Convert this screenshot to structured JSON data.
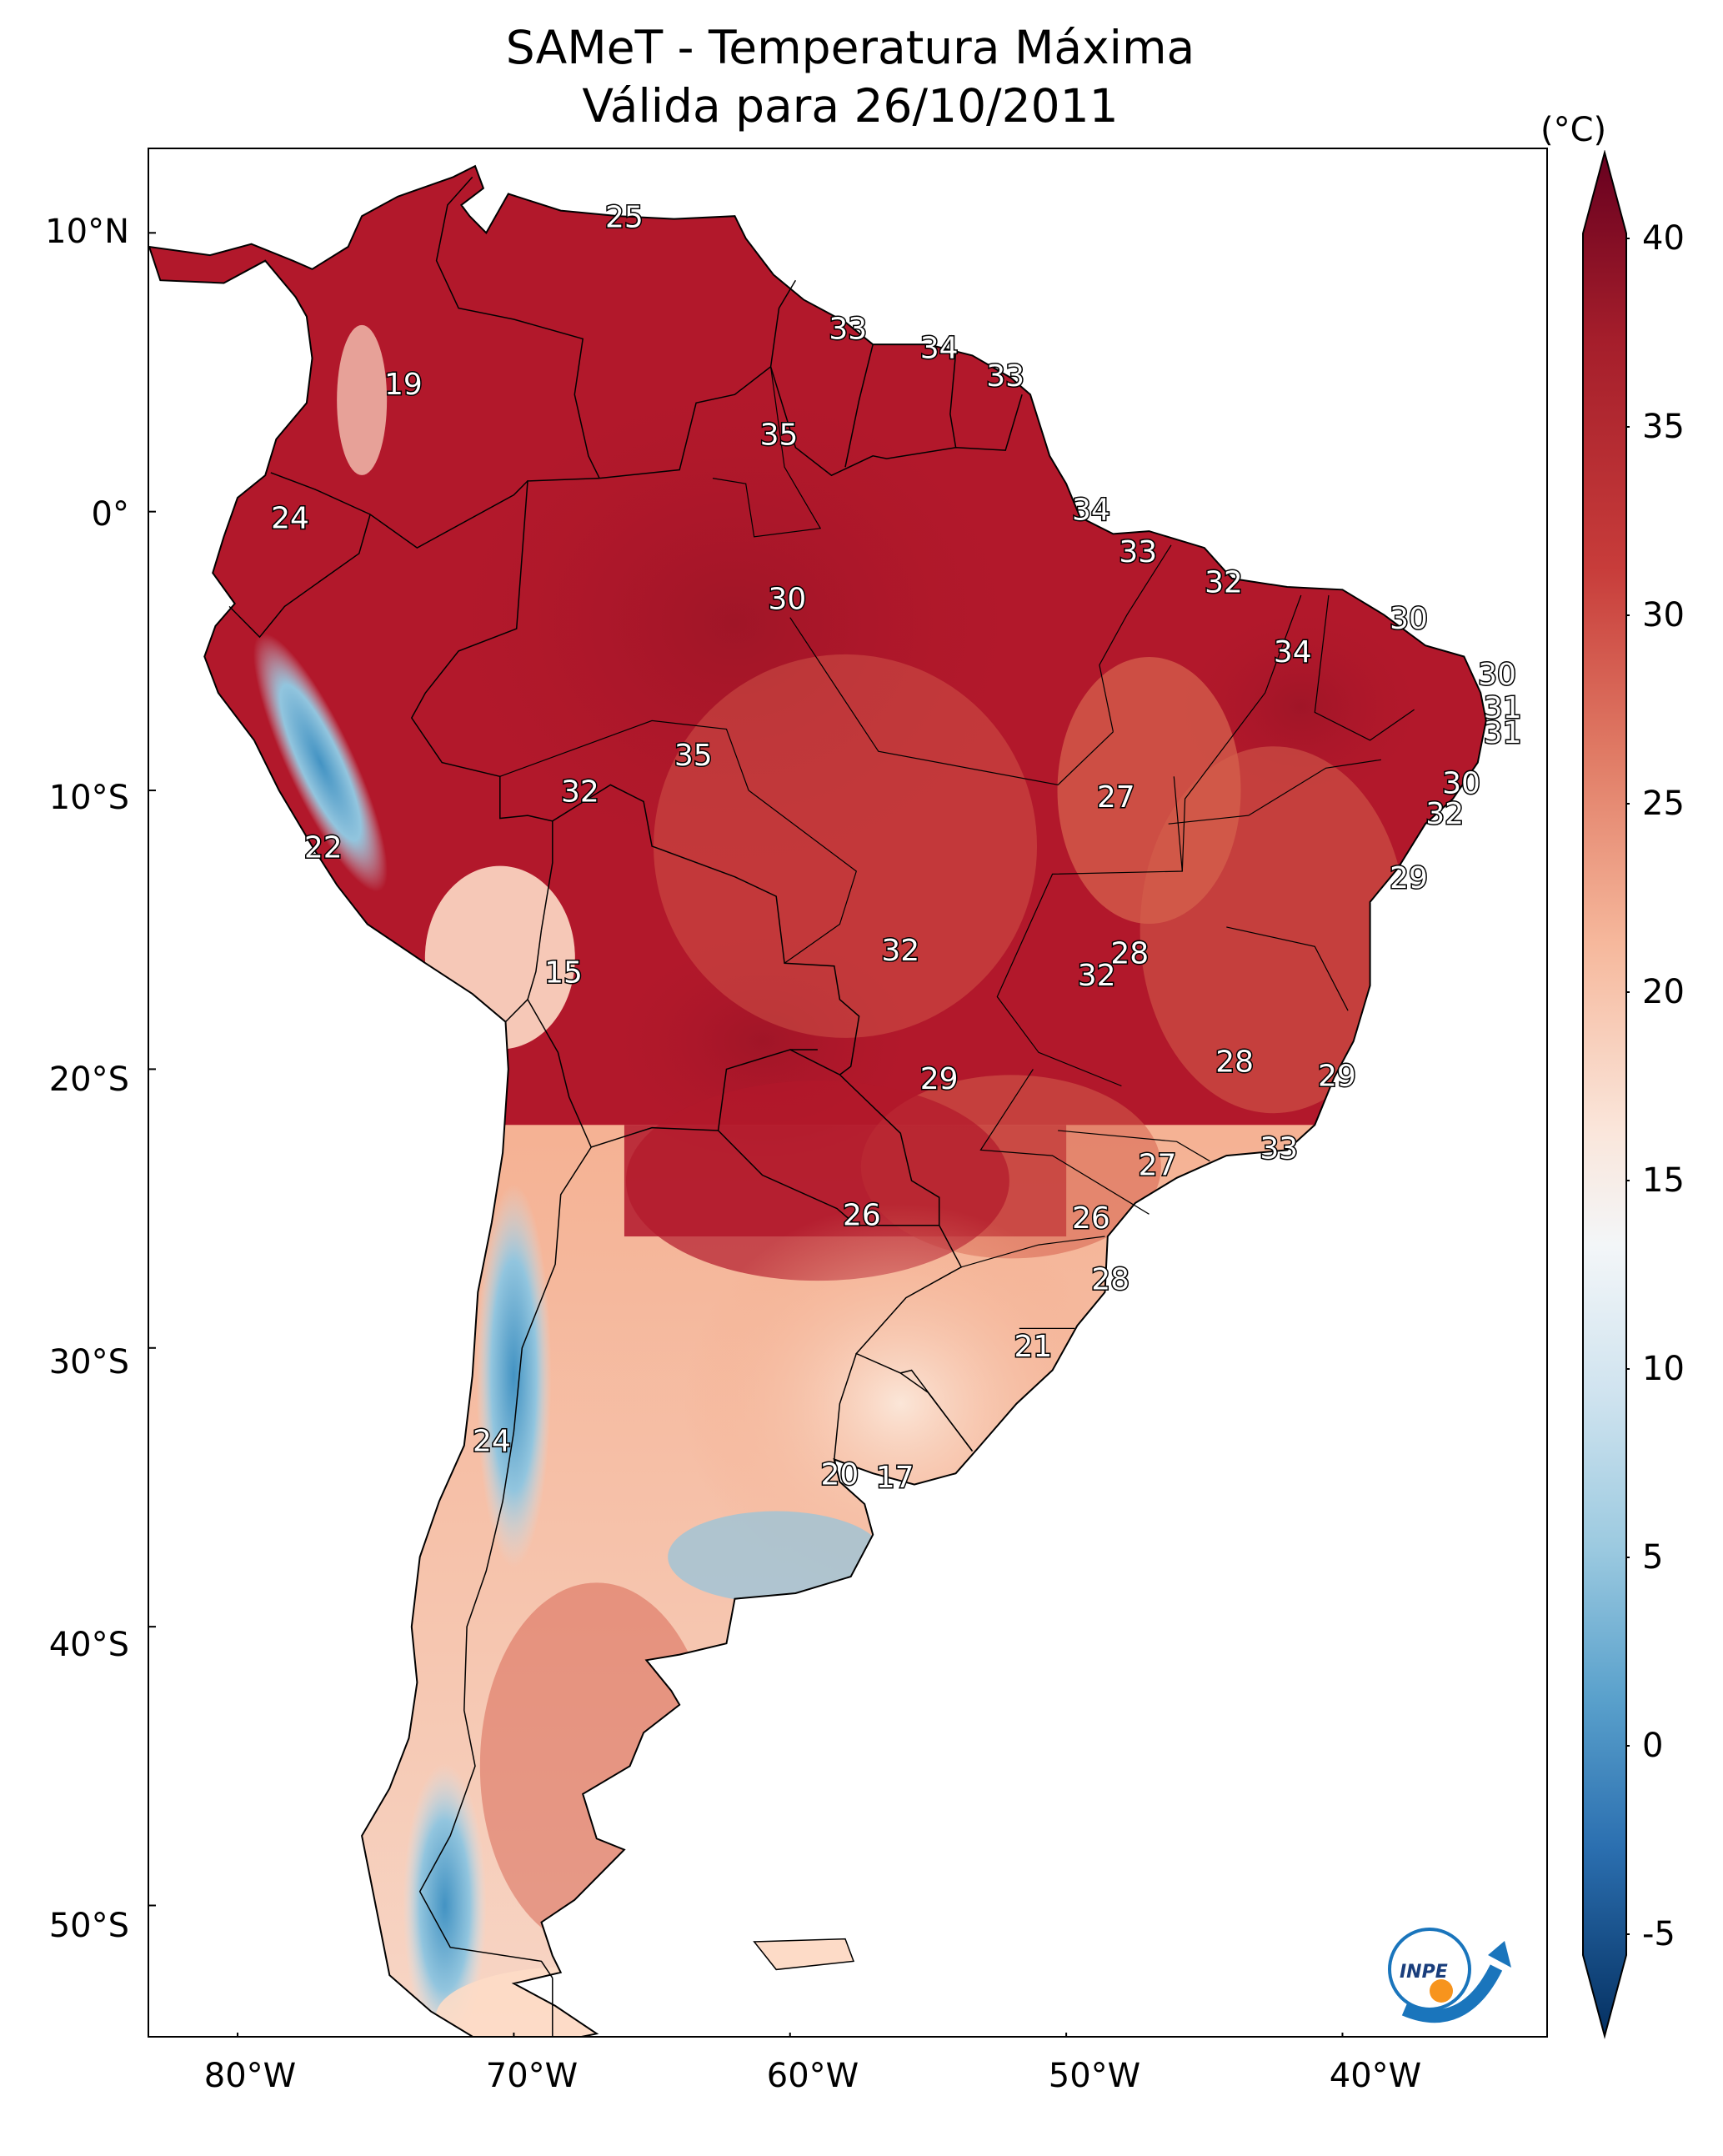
{
  "title": {
    "line1": "SAMeT - Temperatura Máxima",
    "line2": "Válida para 26/10/2011"
  },
  "axes": {
    "lat_ticks": [
      "10°N",
      "0°",
      "10°S",
      "20°S",
      "30°S",
      "40°S",
      "50°S"
    ],
    "lon_ticks": [
      "80°W",
      "70°W",
      "60°W",
      "50°W",
      "40°W"
    ]
  },
  "colorbar": {
    "unit": "(°C)",
    "ticks": [
      "40",
      "35",
      "30",
      "25",
      "20",
      "15",
      "10",
      "5",
      "0",
      "-5"
    ],
    "colors": [
      "#67001f",
      "#b2182b",
      "#d6604d",
      "#f4a582",
      "#fddbc7",
      "#f7f7f7",
      "#d1e5f0",
      "#92c5de",
      "#4393c3",
      "#2166ac",
      "#053061"
    ]
  },
  "map_colors": {
    "hot": "#b2182b",
    "warm": "#d6604d",
    "mild": "#f4a582",
    "cool": "#fddbc7",
    "cold": "#92c5de",
    "ocean": "#ffffff",
    "border": "#000000"
  },
  "station_labels": [
    {
      "value": "25",
      "lon": -66,
      "lat": 10.5
    },
    {
      "value": "19",
      "lon": -74,
      "lat": 4.5
    },
    {
      "value": "33",
      "lon": -57.9,
      "lat": 6.5
    },
    {
      "value": "34",
      "lon": -54.6,
      "lat": 5.8
    },
    {
      "value": "33",
      "lon": -52.2,
      "lat": 4.8
    },
    {
      "value": "35",
      "lon": -60.4,
      "lat": 2.7
    },
    {
      "value": "24",
      "lon": -78.1,
      "lat": -0.3
    },
    {
      "value": "34",
      "lon": -49.1,
      "lat": 0
    },
    {
      "value": "33",
      "lon": -47.4,
      "lat": -1.5
    },
    {
      "value": "30",
      "lon": -60.1,
      "lat": -3.2
    },
    {
      "value": "32",
      "lon": -44.3,
      "lat": -2.6
    },
    {
      "value": "30",
      "lon": -37.6,
      "lat": -3.9
    },
    {
      "value": "34",
      "lon": -41.8,
      "lat": -5.1
    },
    {
      "value": "30",
      "lon": -34.4,
      "lat": -5.9
    },
    {
      "value": "31",
      "lon": -34.2,
      "lat": -7.1
    },
    {
      "value": "31",
      "lon": -34.2,
      "lat": -8
    },
    {
      "value": "35",
      "lon": -63.5,
      "lat": -8.8
    },
    {
      "value": "32",
      "lon": -67.6,
      "lat": -10.1
    },
    {
      "value": "27",
      "lon": -48.2,
      "lat": -10.3
    },
    {
      "value": "30",
      "lon": -35.7,
      "lat": -9.8
    },
    {
      "value": "32",
      "lon": -36.3,
      "lat": -10.9
    },
    {
      "value": "22",
      "lon": -76.9,
      "lat": -12.1
    },
    {
      "value": "29",
      "lon": -37.6,
      "lat": -13.2
    },
    {
      "value": "15",
      "lon": -68.2,
      "lat": -16.6
    },
    {
      "value": "32",
      "lon": -56,
      "lat": -15.8
    },
    {
      "value": "28",
      "lon": -47.7,
      "lat": -15.9
    },
    {
      "value": "32",
      "lon": -48.9,
      "lat": -16.7
    },
    {
      "value": "28",
      "lon": -43.9,
      "lat": -19.8
    },
    {
      "value": "29",
      "lon": -40.2,
      "lat": -20.3
    },
    {
      "value": "29",
      "lon": -54.6,
      "lat": -20.4
    },
    {
      "value": "33",
      "lon": -42.3,
      "lat": -22.9
    },
    {
      "value": "27",
      "lon": -46.7,
      "lat": -23.5
    },
    {
      "value": "26",
      "lon": -57.4,
      "lat": -25.3
    },
    {
      "value": "26",
      "lon": -49.1,
      "lat": -25.4
    },
    {
      "value": "28",
      "lon": -48.4,
      "lat": -27.6
    },
    {
      "value": "21",
      "lon": -51.2,
      "lat": -30.0
    },
    {
      "value": "24",
      "lon": -70.8,
      "lat": -33.4
    },
    {
      "value": "20",
      "lon": -58.2,
      "lat": -34.6
    },
    {
      "value": "17",
      "lon": -56.2,
      "lat": -34.7
    }
  ],
  "logo": {
    "text": "INPE"
  }
}
